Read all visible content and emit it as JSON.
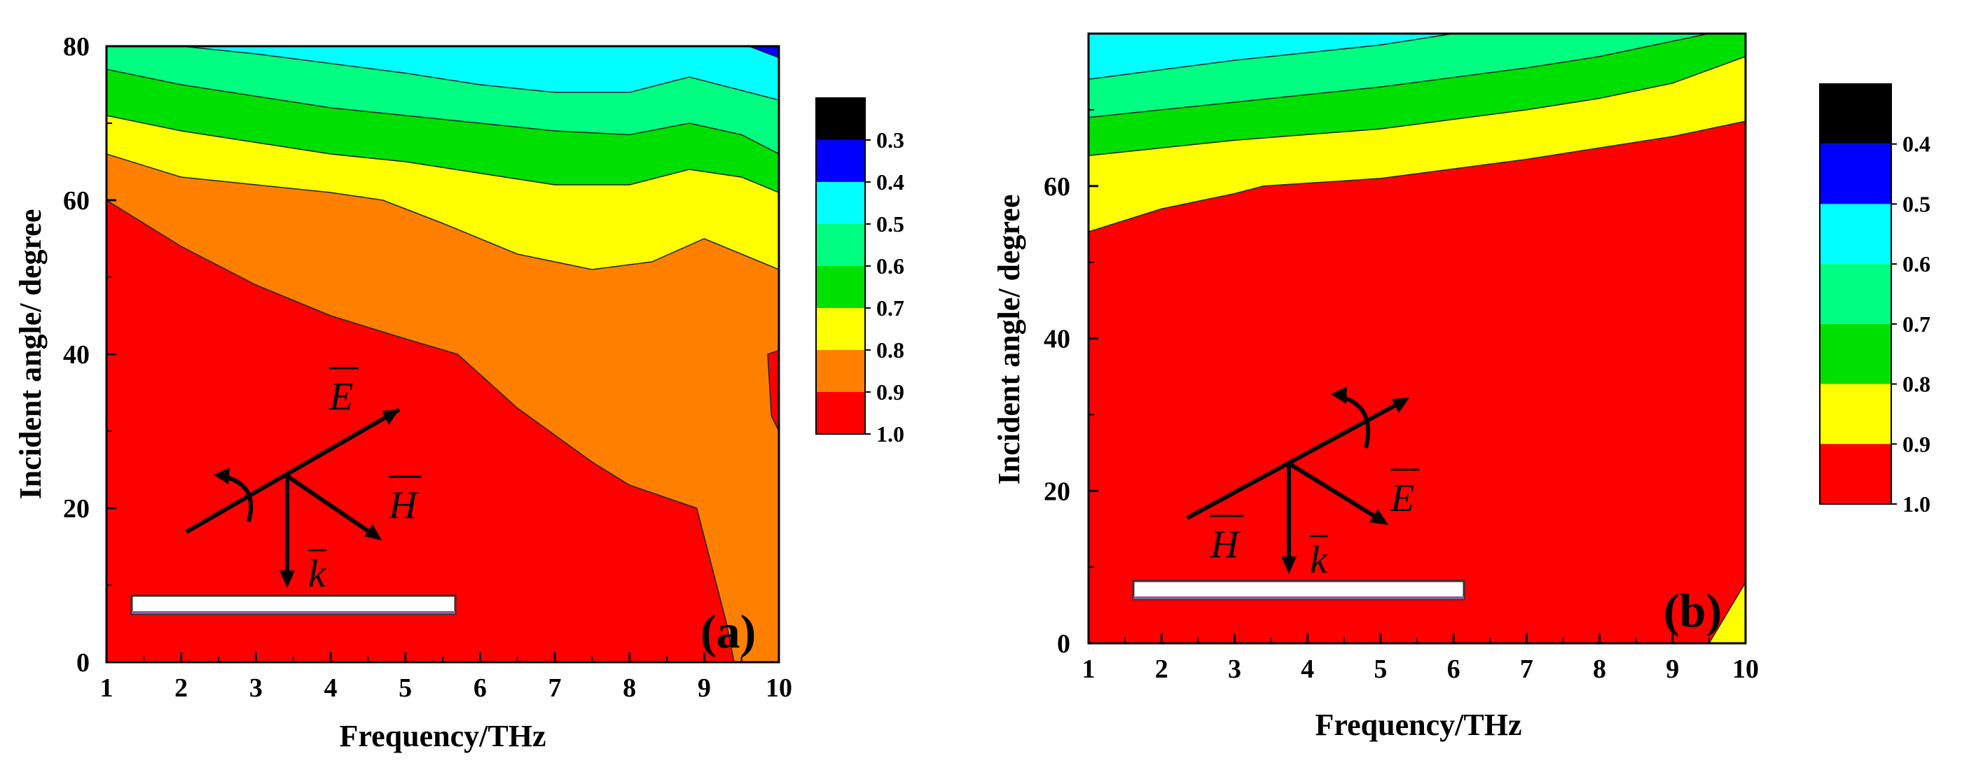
{
  "chart_data": [
    {
      "type": "contour",
      "panel_label": "(a)",
      "xlabel": "Frequency/THz",
      "ylabel": "Incident angle/ degree",
      "xlim": [
        1,
        10
      ],
      "ylim": [
        0,
        80
      ],
      "xticks": [
        "1",
        "2",
        "3",
        "4",
        "5",
        "6",
        "7",
        "8",
        "9",
        "10"
      ],
      "yticks": [
        "0",
        "20",
        "40",
        "60",
        "80"
      ],
      "colorbar": {
        "labels": [
          "0.3",
          "0.4",
          "0.5",
          "0.6",
          "0.7",
          "0.8",
          "0.9",
          "1.0"
        ],
        "colors": [
          "#000000",
          "#0000ff",
          "#00ffff",
          "#00ff80",
          "#00e000",
          "#ffff00",
          "#ff8000",
          "#ff0000"
        ]
      },
      "inset_vectors": {
        "e": "E",
        "h": "H",
        "k": "k"
      },
      "contours": [
        {
          "level": "0.9-1.0",
          "color": "#ff0000",
          "upper_boundary": [
            [
              1,
              60
            ],
            [
              2,
              54
            ],
            [
              3,
              49
            ],
            [
              4,
              45
            ],
            [
              5,
              42
            ],
            [
              5.7,
              40
            ],
            [
              6.5,
              33
            ],
            [
              7.5,
              26
            ],
            [
              8,
              23
            ],
            [
              8.9,
              20
            ],
            [
              9.3,
              5
            ],
            [
              9.4,
              0
            ]
          ]
        },
        {
          "level": "0.8-0.9",
          "color": "#ff8000",
          "upper_boundary": [
            [
              1,
              66
            ],
            [
              2,
              63
            ],
            [
              3,
              62
            ],
            [
              4,
              61
            ],
            [
              4.7,
              60
            ],
            [
              5.5,
              57
            ],
            [
              6.5,
              53
            ],
            [
              7.5,
              51
            ],
            [
              8.3,
              52
            ],
            [
              9,
              55
            ],
            [
              9.5,
              53
            ],
            [
              10,
              51
            ]
          ]
        },
        {
          "level": "0.7-0.8",
          "color": "#ffff00",
          "upper_boundary": [
            [
              1,
              71
            ],
            [
              2,
              69
            ],
            [
              3,
              67.5
            ],
            [
              4,
              66
            ],
            [
              5,
              65
            ],
            [
              6,
              63.5
            ],
            [
              7,
              62
            ],
            [
              8,
              62
            ],
            [
              8.8,
              64
            ],
            [
              9.5,
              63
            ],
            [
              10,
              61
            ]
          ]
        },
        {
          "level": "0.6-0.7",
          "color": "#00e000",
          "upper_boundary": [
            [
              1,
              77
            ],
            [
              2,
              75
            ],
            [
              3,
              73.5
            ],
            [
              4,
              72
            ],
            [
              5,
              71
            ],
            [
              6,
              70
            ],
            [
              7,
              69
            ],
            [
              8,
              68.5
            ],
            [
              8.8,
              70
            ],
            [
              9.5,
              68.5
            ],
            [
              10,
              66
            ]
          ]
        },
        {
          "level": "0.5-0.6",
          "color": "#00ff80",
          "upper_boundary": [
            [
              1,
              81
            ],
            [
              3,
              79
            ],
            [
              5,
              76.5
            ],
            [
              6,
              75
            ],
            [
              7,
              74
            ],
            [
              8,
              74
            ],
            [
              8.8,
              76
            ],
            [
              10,
              73
            ]
          ]
        },
        {
          "level": "0.4-0.5",
          "color": "#00ffff",
          "upper_boundary": [
            [
              1,
              81
            ],
            [
              10,
              81
            ]
          ]
        },
        {
          "level": "0.3-0.4",
          "color": "#0000ff",
          "region": [
            [
              5,
              81
            ],
            [
              7,
              80.5
            ],
            [
              8.5,
              80
            ],
            [
              9.6,
              80
            ],
            [
              10,
              78.5
            ],
            [
              10,
              81
            ]
          ]
        },
        {
          "level": "0.9-1.0",
          "color": "#ff0000",
          "region": [
            [
              9.85,
              40
            ],
            [
              10,
              40.5
            ],
            [
              10,
              30
            ],
            [
              9.9,
              32
            ]
          ]
        }
      ]
    },
    {
      "type": "contour",
      "panel_label": "(b)",
      "xlabel": "Frequency/THz",
      "ylabel": "Incident angle/ degree",
      "xlim": [
        1,
        10
      ],
      "ylim": [
        0,
        80
      ],
      "xticks": [
        "1",
        "2",
        "3",
        "4",
        "5",
        "6",
        "7",
        "8",
        "9",
        "10"
      ],
      "yticks": [
        "0",
        "20",
        "40",
        "60"
      ],
      "colorbar": {
        "labels": [
          "0.4",
          "0.5",
          "0.6",
          "0.7",
          "0.8",
          "0.9",
          "1.0"
        ],
        "colors": [
          "#000000",
          "#0000ff",
          "#00ffff",
          "#00ff80",
          "#00e000",
          "#ffff00",
          "#ff0000"
        ]
      },
      "inset_vectors": {
        "e": "E",
        "h": "H",
        "k": "k"
      },
      "contours": [
        {
          "level": "0.9-1.0",
          "color": "#ff0000",
          "upper_boundary": [
            [
              1,
              54
            ],
            [
              2,
              57
            ],
            [
              3,
              59
            ],
            [
              3.4,
              60
            ],
            [
              5,
              61
            ],
            [
              7,
              63.5
            ],
            [
              8,
              65
            ],
            [
              9,
              66.5
            ],
            [
              10,
              68.5
            ]
          ]
        },
        {
          "level": "0.8-0.9",
          "color": "#ffff00",
          "upper_boundary": [
            [
              1,
              64
            ],
            [
              3,
              66
            ],
            [
              5,
              67.5
            ],
            [
              7,
              70
            ],
            [
              8,
              71.5
            ],
            [
              9,
              73.5
            ],
            [
              10,
              77
            ]
          ]
        },
        {
          "level": "0.7-0.8",
          "color": "#00e000",
          "upper_boundary": [
            [
              1,
              69
            ],
            [
              3,
              71
            ],
            [
              5,
              73
            ],
            [
              7,
              75.5
            ],
            [
              8,
              77
            ],
            [
              9,
              79
            ],
            [
              10,
              81
            ]
          ]
        },
        {
          "level": "0.6-0.7",
          "color": "#00ff80",
          "upper_boundary": [
            [
              1,
              74
            ],
            [
              3,
              76.5
            ],
            [
              5,
              78.5
            ],
            [
              6,
              80
            ],
            [
              7,
              81
            ],
            [
              10,
              81
            ]
          ]
        },
        {
          "level": "0.5-0.6",
          "color": "#00ffff",
          "upper_boundary": [
            [
              1,
              80
            ],
            [
              2,
              81
            ],
            [
              10,
              81
            ]
          ]
        },
        {
          "level": "0.4-0.5",
          "color": "#0000ff",
          "region": [
            [
              1,
              81
            ],
            [
              1.5,
              80.7
            ],
            [
              2.2,
              81
            ]
          ]
        },
        {
          "level": "0.8-0.9",
          "color": "#ffff00",
          "region": [
            [
              9.5,
              0
            ],
            [
              10,
              8
            ],
            [
              10,
              0
            ]
          ]
        }
      ]
    }
  ]
}
